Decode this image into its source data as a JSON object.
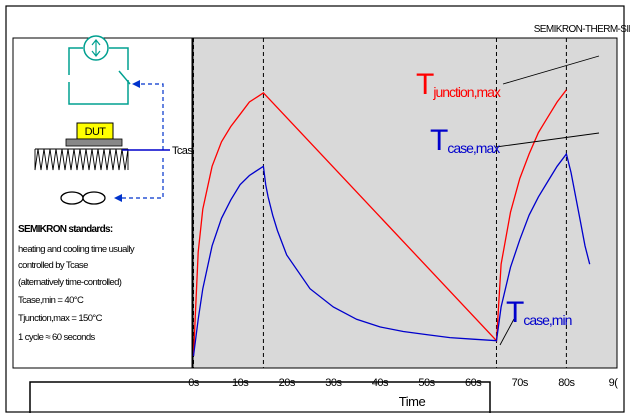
{
  "watermark": "SEMIKRON-THERM-SIM",
  "schematic": {
    "dut_label": "DUT",
    "tcase_label": "Tcase"
  },
  "standards": {
    "heading": "SEMIKRON standards:",
    "lines": [
      "heating and cooling time usually",
      "controlled by Tcase",
      "(alternatively time-controlled)",
      "Tcase,min = 40°C",
      "Tjunction,max = 150°C",
      "1 cycle ≈ 60 seconds"
    ]
  },
  "annotations": {
    "tj_max": {
      "main": "T",
      "sub": "junction,max"
    },
    "tc_max": {
      "main": "T",
      "sub": "case,max"
    },
    "tc_min": {
      "main": "T",
      "sub": "case,min"
    }
  },
  "colors": {
    "junction": "#ff0000",
    "case": "#0000cc",
    "plot_bg": "#d9d9d9",
    "dut_fill": "#ffff00",
    "schematic_line": "#00a090"
  },
  "chart_data": {
    "type": "line",
    "xlabel": "Time",
    "ylabel": "",
    "xlim": [
      0,
      90
    ],
    "x_ticks": [
      "0s",
      "10s",
      "20s",
      "30s",
      "40s",
      "50s",
      "60s",
      "70s",
      "80s",
      "9("
    ],
    "x_tick_values": [
      0,
      10,
      20,
      30,
      40,
      50,
      60,
      70,
      80,
      90
    ],
    "vlines": [
      0,
      15,
      65,
      80
    ],
    "grid": false,
    "series": [
      {
        "key": "junction",
        "x": [
          0,
          1,
          2,
          4,
          6,
          8,
          10,
          12,
          14,
          15,
          65,
          66,
          68,
          70,
          72,
          74,
          76,
          78,
          80
        ],
        "y": [
          0.0,
          0.34,
          0.48,
          0.62,
          0.7,
          0.75,
          0.79,
          0.83,
          0.85,
          0.86,
          0.05,
          0.3,
          0.47,
          0.58,
          0.66,
          0.73,
          0.78,
          0.83,
          0.87
        ]
      },
      {
        "key": "case",
        "x": [
          0,
          1,
          2,
          4,
          6,
          8,
          10,
          12,
          14,
          15,
          15.5,
          16,
          17,
          18,
          20,
          25,
          30,
          35,
          40,
          45,
          50,
          55,
          60,
          65,
          66,
          68,
          70,
          72,
          74,
          76,
          78,
          80,
          81,
          82,
          83,
          84,
          85
        ],
        "y": [
          0.0,
          0.12,
          0.22,
          0.36,
          0.45,
          0.51,
          0.56,
          0.59,
          0.61,
          0.62,
          0.56,
          0.52,
          0.46,
          0.41,
          0.33,
          0.22,
          0.16,
          0.12,
          0.095,
          0.08,
          0.07,
          0.06,
          0.055,
          0.05,
          0.16,
          0.29,
          0.38,
          0.46,
          0.52,
          0.57,
          0.62,
          0.66,
          0.6,
          0.52,
          0.44,
          0.36,
          0.3
        ]
      }
    ]
  }
}
